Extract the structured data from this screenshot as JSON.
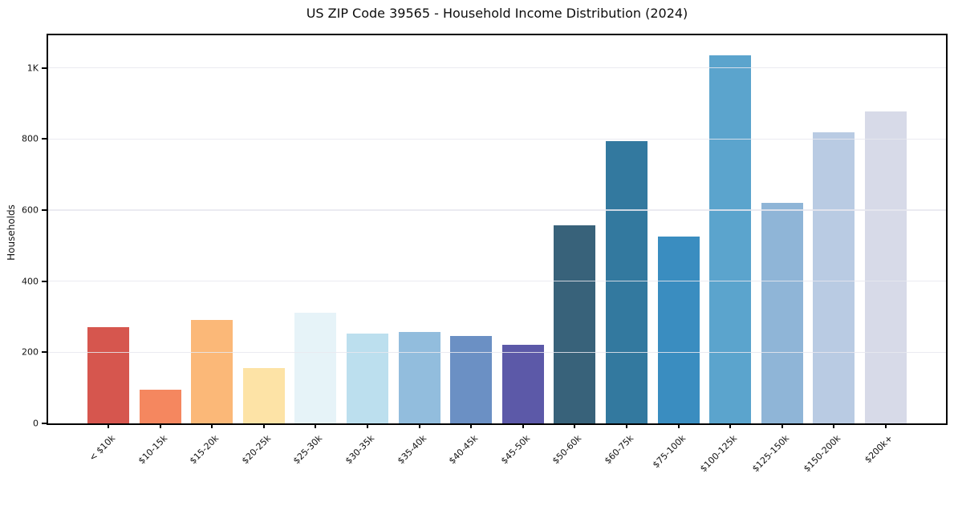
{
  "page": {
    "background": "#ffffff",
    "text_color": "#111111",
    "axis_color": "#000000",
    "gridline_color": "#e7e7ee"
  },
  "chart_data": {
    "type": "bar",
    "title": "US ZIP Code 39565 - Household Income Distribution (2024)",
    "xlabel": "",
    "ylabel": "Households",
    "legend": "none",
    "grid": "horizontal",
    "ylim": [
      0,
      1092
    ],
    "yticks": [
      {
        "value": 0,
        "label": "0"
      },
      {
        "value": 200,
        "label": "200"
      },
      {
        "value": 400,
        "label": "400"
      },
      {
        "value": 600,
        "label": "600"
      },
      {
        "value": 800,
        "label": "800"
      },
      {
        "value": 1000,
        "label": "1K"
      }
    ],
    "categories": [
      "< $10k",
      "$10-15k",
      "$15-20k",
      "$20-25k",
      "$25-30k",
      "$30-35k",
      "$35-40k",
      "$40-45k",
      "$45-50k",
      "$50-60k",
      "$60-75k",
      "$75-100k",
      "$100-125k",
      "$125-150k",
      "$150-200k",
      "$200k+"
    ],
    "values": [
      270,
      95,
      290,
      155,
      312,
      253,
      258,
      245,
      220,
      558,
      795,
      525,
      1036,
      620,
      818,
      878
    ],
    "bar_colors": [
      "#d6564e",
      "#f5875f",
      "#fbb878",
      "#fde3a6",
      "#e6f3f8",
      "#bcdfee",
      "#92bddd",
      "#6b90c4",
      "#5c59a8",
      "#38627a",
      "#33799f",
      "#3a8dc0",
      "#5ba4cd",
      "#8fb5d7",
      "#b9cbe3",
      "#d7dae8"
    ]
  }
}
